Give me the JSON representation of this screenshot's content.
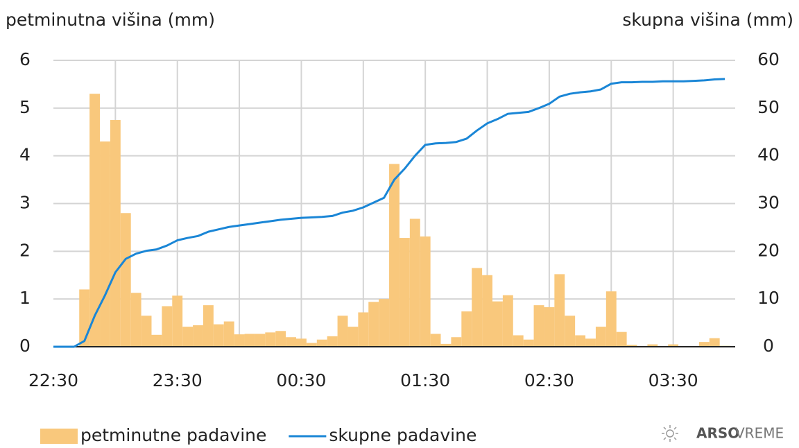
{
  "chart_data": {
    "type": "combo",
    "y_label": "petminutna višina (mm)",
    "y2_label": "skupna višina (mm)",
    "x": [
      0,
      5,
      10,
      15,
      20,
      25,
      30,
      35,
      40,
      45,
      50,
      55,
      60,
      65,
      70,
      75,
      80,
      85,
      90,
      95,
      100,
      105,
      110,
      115,
      120,
      125,
      130,
      135,
      140,
      145,
      150,
      155,
      160,
      165,
      170,
      175,
      180,
      185,
      190,
      195,
      200,
      205,
      210,
      215,
      220,
      225,
      230,
      235,
      240,
      245,
      250,
      255,
      260,
      265,
      270,
      275,
      280,
      285,
      290,
      295,
      300,
      305,
      310,
      315,
      320,
      325
    ],
    "xlim": [
      0,
      330
    ],
    "xticks": [
      {
        "value": 0,
        "label": "22:30"
      },
      {
        "value": 60,
        "label": "23:30"
      },
      {
        "value": 120,
        "label": "00:30"
      },
      {
        "value": 180,
        "label": "01:30"
      },
      {
        "value": 240,
        "label": "02:30"
      },
      {
        "value": 300,
        "label": "03:30"
      }
    ],
    "xgrid": [
      30,
      60,
      90,
      120,
      150,
      180,
      210,
      240,
      270,
      300
    ],
    "ylim": [
      0,
      6
    ],
    "yticks": [
      0,
      1,
      2,
      3,
      4,
      5,
      6
    ],
    "y2lim": [
      0,
      60
    ],
    "y2ticks": [
      0,
      10,
      20,
      30,
      40,
      50,
      60
    ],
    "grid": true,
    "series": [
      {
        "name": "petminutne padavine",
        "type": "bar",
        "color": "#f9c87c",
        "values": [
          0,
          0,
          0,
          1.2,
          5.3,
          4.3,
          4.75,
          2.8,
          1.13,
          0.65,
          0.25,
          0.85,
          1.07,
          0.42,
          0.45,
          0.87,
          0.47,
          0.53,
          0.26,
          0.27,
          0.27,
          0.3,
          0.33,
          0.2,
          0.17,
          0.08,
          0.15,
          0.22,
          0.65,
          0.42,
          0.72,
          0.94,
          1.0,
          3.83,
          2.28,
          2.68,
          2.31,
          0.27,
          0.06,
          0.2,
          0.74,
          1.65,
          1.5,
          0.95,
          1.08,
          0.24,
          0.15,
          0.87,
          0.83,
          1.52,
          0.65,
          0.24,
          0.17,
          0.42,
          1.16,
          0.31,
          0.04,
          0.01,
          0.05,
          0.01,
          0.05,
          0.01,
          0,
          0.1,
          0.18,
          0.02
        ]
      },
      {
        "name": "skupne padavine",
        "type": "line",
        "axis": "y2",
        "color": "#1a86d6",
        "values": [
          0,
          0,
          0,
          1.2,
          6.5,
          10.8,
          15.6,
          18.4,
          19.5,
          20.1,
          20.4,
          21.2,
          22.3,
          22.8,
          23.2,
          24.1,
          24.6,
          25.1,
          25.4,
          25.7,
          26.0,
          26.3,
          26.6,
          26.8,
          27.0,
          27.1,
          27.2,
          27.4,
          28.1,
          28.5,
          29.2,
          30.2,
          31.2,
          35.0,
          37.3,
          40.0,
          42.3,
          42.6,
          42.7,
          42.9,
          43.6,
          45.3,
          46.8,
          47.7,
          48.8,
          49.0,
          49.2,
          50.0,
          50.9,
          52.4,
          53.0,
          53.3,
          53.5,
          53.9,
          55.1,
          55.4,
          55.4,
          55.5,
          55.5,
          55.6,
          55.6,
          55.6,
          55.7,
          55.8,
          56.0,
          56.1
        ]
      }
    ],
    "brand": {
      "bold": "ARSO",
      "rest": "VREME"
    }
  }
}
